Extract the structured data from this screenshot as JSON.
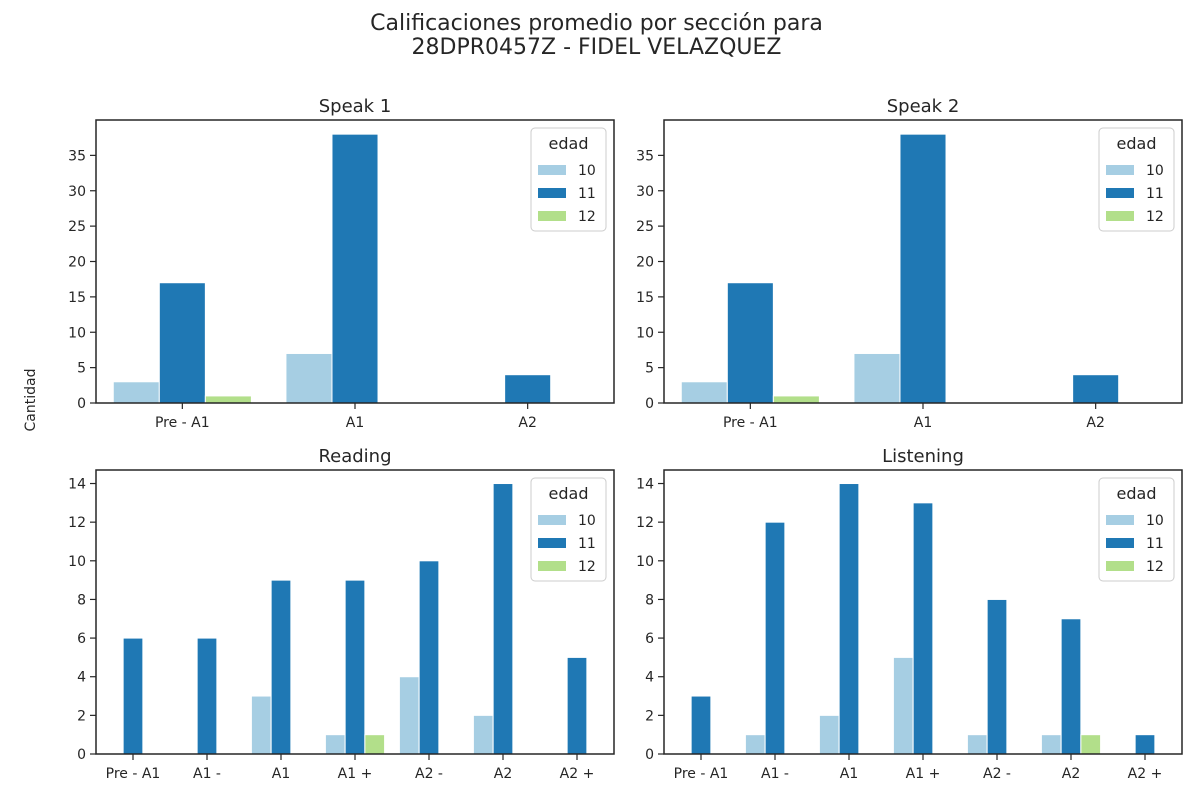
{
  "figure": {
    "title_line1": "Calificaciones promedio por sección para",
    "title_line2": "28DPR0457Z - FIDEL VELAZQUEZ",
    "ylabel": "Cantidad"
  },
  "colors": {
    "10": "#a6cee3",
    "11": "#1f78b4",
    "12": "#b2df8a"
  },
  "chart_data": [
    {
      "type": "bar",
      "title": "Speak 1",
      "categories": [
        "Pre - A1",
        "A1",
        "A2"
      ],
      "legend": {
        "title": "edad",
        "placement": "top-right"
      },
      "ylim": [
        0,
        40
      ],
      "yticks": [
        0,
        5,
        10,
        15,
        20,
        25,
        30,
        35
      ],
      "series": [
        {
          "name": "10",
          "values": [
            3,
            7,
            0
          ]
        },
        {
          "name": "11",
          "values": [
            17,
            38,
            4
          ]
        },
        {
          "name": "12",
          "values": [
            1,
            0,
            0
          ]
        }
      ]
    },
    {
      "type": "bar",
      "title": "Speak 2",
      "categories": [
        "Pre - A1",
        "A1",
        "A2"
      ],
      "legend": {
        "title": "edad",
        "placement": "top-right"
      },
      "ylim": [
        0,
        40
      ],
      "yticks": [
        0,
        5,
        10,
        15,
        20,
        25,
        30,
        35
      ],
      "series": [
        {
          "name": "10",
          "values": [
            3,
            7,
            0
          ]
        },
        {
          "name": "11",
          "values": [
            17,
            38,
            4
          ]
        },
        {
          "name": "12",
          "values": [
            1,
            0,
            0
          ]
        }
      ]
    },
    {
      "type": "bar",
      "title": "Reading",
      "categories": [
        "Pre - A1",
        "A1 -",
        "A1",
        "A1 +",
        "A2 -",
        "A2",
        "A2 +"
      ],
      "legend": {
        "title": "edad",
        "placement": "top-right"
      },
      "ylim": [
        0,
        14.7
      ],
      "yticks": [
        0,
        2,
        4,
        6,
        8,
        10,
        12,
        14
      ],
      "series": [
        {
          "name": "10",
          "values": [
            0,
            0,
            3,
            1,
            4,
            2,
            0
          ]
        },
        {
          "name": "11",
          "values": [
            6,
            6,
            9,
            9,
            10,
            14,
            5
          ]
        },
        {
          "name": "12",
          "values": [
            0,
            0,
            0,
            1,
            0,
            0,
            0
          ]
        }
      ]
    },
    {
      "type": "bar",
      "title": "Listening",
      "categories": [
        "Pre - A1",
        "A1 -",
        "A1",
        "A1 +",
        "A2 -",
        "A2",
        "A2 +"
      ],
      "legend": {
        "title": "edad",
        "placement": "top-right"
      },
      "ylim": [
        0,
        14.7
      ],
      "yticks": [
        0,
        2,
        4,
        6,
        8,
        10,
        12,
        14
      ],
      "series": [
        {
          "name": "10",
          "values": [
            0,
            1,
            2,
            5,
            1,
            1,
            0
          ]
        },
        {
          "name": "11",
          "values": [
            3,
            12,
            14,
            13,
            8,
            7,
            1
          ]
        },
        {
          "name": "12",
          "values": [
            0,
            0,
            0,
            0,
            0,
            1,
            0
          ]
        }
      ]
    }
  ]
}
